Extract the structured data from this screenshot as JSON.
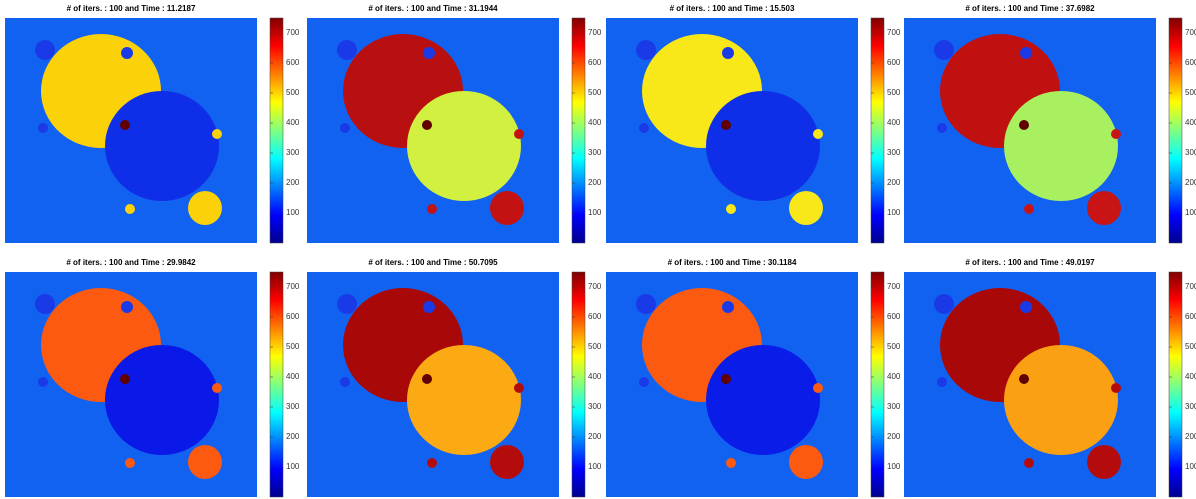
{
  "chart_data": [
    {
      "type": "image",
      "title": "# of iters. : 100 and Time : 11.2187",
      "colors": [
        "#fbd20a",
        "#0f2ee8",
        "#fbd20a"
      ],
      "clim": [
        0,
        750
      ],
      "cticks": [
        100,
        200,
        300,
        400,
        500,
        600,
        700
      ]
    },
    {
      "type": "image",
      "title": "# of iters. : 100 and Time : 31.1944",
      "colors": [
        "#b81010",
        "#d2f040",
        "#c21212"
      ],
      "clim": [
        0,
        750
      ],
      "cticks": [
        100,
        200,
        300,
        400,
        500,
        600,
        700
      ]
    },
    {
      "type": "image",
      "title": "# of iters. : 100 and Time : 15.503",
      "colors": [
        "#f8e81a",
        "#0f2ee8",
        "#f8e81a"
      ],
      "clim": [
        0,
        750
      ],
      "cticks": [
        100,
        200,
        300,
        400,
        500,
        600,
        700
      ]
    },
    {
      "type": "image",
      "title": "# of iters. : 100 and Time : 37.6982",
      "colors": [
        "#c01010",
        "#a8f060",
        "#c81414"
      ],
      "clim": [
        0,
        750
      ],
      "cticks": [
        100,
        200,
        300,
        400,
        500,
        600,
        700
      ]
    },
    {
      "type": "image",
      "title": "# of iters. : 100 and Time : 29.9842",
      "colors": [
        "#fb5a10",
        "#0a18e8",
        "#fb5a10"
      ],
      "clim": [
        0,
        750
      ],
      "cticks": [
        100,
        200,
        300,
        400,
        500,
        600,
        700
      ]
    },
    {
      "type": "image",
      "title": "# of iters. : 100 and Time : 50.7095",
      "colors": [
        "#a80808",
        "#fbaa14",
        "#b40c0c"
      ],
      "clim": [
        0,
        750
      ],
      "cticks": [
        100,
        200,
        300,
        400,
        500,
        600,
        700
      ]
    },
    {
      "type": "image",
      "title": "# of iters. : 100 and Time : 30.1184",
      "colors": [
        "#fb5a10",
        "#0a1ce8",
        "#fb5a10"
      ],
      "clim": [
        0,
        750
      ],
      "cticks": [
        100,
        200,
        300,
        400,
        500,
        600,
        700
      ]
    },
    {
      "type": "image",
      "title": "# of iters. : 100 and Time : 49.0197",
      "colors": [
        "#a80808",
        "#fba012",
        "#b40c0c"
      ],
      "clim": [
        0,
        750
      ],
      "cticks": [
        100,
        200,
        300,
        400,
        500,
        600,
        700
      ]
    }
  ]
}
